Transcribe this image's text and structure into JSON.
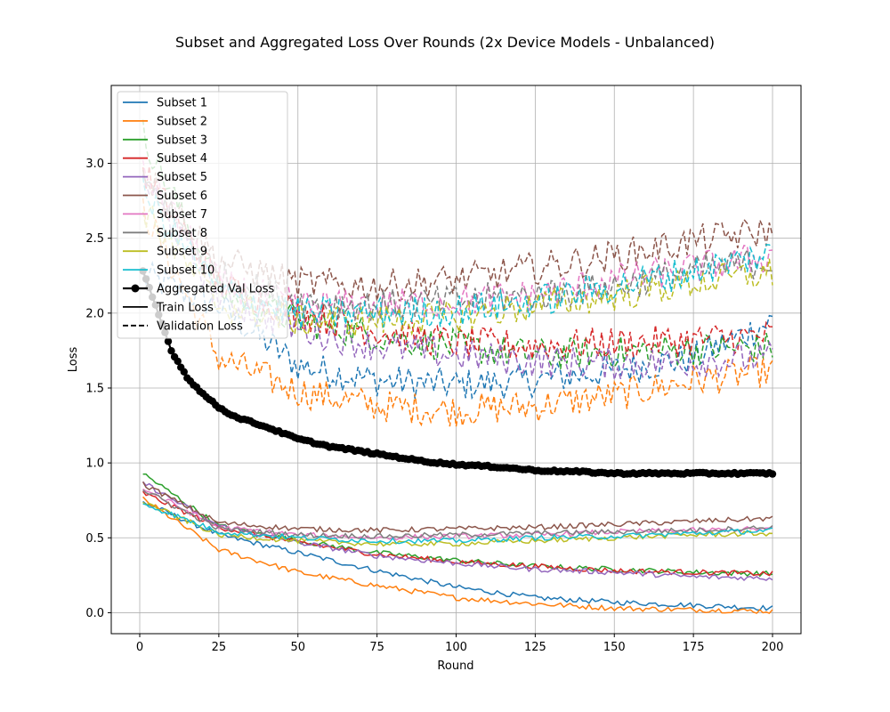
{
  "chart_data": {
    "type": "line",
    "title": "Subset and Aggregated Loss Over Rounds (2x Device Models - Unbalanced)",
    "xlabel": "Round",
    "ylabel": "Loss",
    "xlim": [
      -9,
      209
    ],
    "ylim": [
      -0.14,
      3.52
    ],
    "xticks": [
      0,
      25,
      50,
      75,
      100,
      125,
      150,
      175,
      200
    ],
    "yticks": [
      0.0,
      0.5,
      1.0,
      1.5,
      2.0,
      2.5,
      3.0
    ],
    "xtick_labels": [
      "0",
      "25",
      "50",
      "75",
      "100",
      "125",
      "150",
      "175",
      "200"
    ],
    "ytick_labels": [
      "0.0",
      "0.5",
      "1.0",
      "1.5",
      "2.0",
      "2.5",
      "3.0"
    ],
    "grid": true,
    "legend_position": "upper-left",
    "x": [
      1,
      25,
      50,
      75,
      100,
      125,
      150,
      175,
      200
    ],
    "series": [
      {
        "name": "Subset 1",
        "color": "#1f77b4",
        "train": [
          0.74,
          0.52,
          0.4,
          0.28,
          0.17,
          0.1,
          0.07,
          0.05,
          0.03
        ],
        "val": [
          2.25,
          2.05,
          1.65,
          1.55,
          1.52,
          1.55,
          1.62,
          1.7,
          1.95
        ]
      },
      {
        "name": "Subset 2",
        "color": "#ff7f0e",
        "train": [
          0.76,
          0.42,
          0.27,
          0.18,
          0.1,
          0.06,
          0.03,
          0.02,
          0.01
        ],
        "val": [
          2.7,
          1.7,
          1.48,
          1.38,
          1.35,
          1.38,
          1.45,
          1.55,
          1.62
        ]
      },
      {
        "name": "Subset 3",
        "color": "#2ca02c",
        "train": [
          0.93,
          0.58,
          0.48,
          0.4,
          0.35,
          0.31,
          0.29,
          0.27,
          0.26
        ],
        "val": [
          3.2,
          2.15,
          1.95,
          1.85,
          1.78,
          1.72,
          1.74,
          1.76,
          1.77
        ]
      },
      {
        "name": "Subset 4",
        "color": "#d62728",
        "train": [
          0.8,
          0.57,
          0.47,
          0.39,
          0.34,
          0.31,
          0.28,
          0.27,
          0.26
        ],
        "val": [
          2.95,
          2.2,
          2.0,
          1.88,
          1.8,
          1.78,
          1.8,
          1.82,
          1.85
        ]
      },
      {
        "name": "Subset 5",
        "color": "#9467bd",
        "train": [
          0.87,
          0.58,
          0.47,
          0.38,
          0.33,
          0.29,
          0.27,
          0.24,
          0.23
        ],
        "val": [
          2.9,
          2.1,
          1.9,
          1.78,
          1.72,
          1.68,
          1.66,
          1.68,
          1.7
        ]
      },
      {
        "name": "Subset 6",
        "color": "#8c564b",
        "train": [
          0.86,
          0.6,
          0.56,
          0.55,
          0.56,
          0.57,
          0.59,
          0.61,
          0.63
        ],
        "val": [
          2.95,
          2.35,
          2.2,
          2.18,
          2.22,
          2.3,
          2.38,
          2.48,
          2.55
        ]
      },
      {
        "name": "Subset 7",
        "color": "#e377c2",
        "train": [
          0.83,
          0.57,
          0.52,
          0.5,
          0.51,
          0.52,
          0.54,
          0.55,
          0.56
        ],
        "val": [
          2.95,
          2.2,
          2.05,
          2.05,
          2.08,
          2.12,
          2.22,
          2.3,
          2.38
        ]
      },
      {
        "name": "Subset 8",
        "color": "#7f7f7f",
        "train": [
          0.82,
          0.56,
          0.52,
          0.51,
          0.52,
          0.53,
          0.54,
          0.55,
          0.57
        ],
        "val": [
          2.9,
          2.25,
          2.08,
          2.05,
          2.08,
          2.12,
          2.18,
          2.28,
          2.35
        ]
      },
      {
        "name": "Subset 9",
        "color": "#bcbd22",
        "train": [
          0.74,
          0.52,
          0.48,
          0.46,
          0.46,
          0.48,
          0.5,
          0.52,
          0.53
        ],
        "val": [
          2.7,
          2.05,
          1.95,
          1.95,
          1.98,
          2.05,
          2.12,
          2.2,
          2.27
        ]
      },
      {
        "name": "Subset 10",
        "color": "#17becf",
        "train": [
          0.73,
          0.54,
          0.5,
          0.48,
          0.48,
          0.5,
          0.51,
          0.53,
          0.55
        ],
        "val": [
          2.8,
          2.15,
          2.0,
          2.0,
          2.02,
          2.08,
          2.18,
          2.28,
          2.4
        ]
      }
    ],
    "aggregated_val": {
      "name": "Aggregated Val Loss",
      "color": "#000000",
      "x": [
        1,
        5,
        10,
        15,
        20,
        25,
        30,
        40,
        50,
        60,
        75,
        90,
        100,
        115,
        125,
        140,
        150,
        165,
        175,
        190,
        200
      ],
      "y": [
        2.28,
        2.05,
        1.75,
        1.57,
        1.46,
        1.37,
        1.31,
        1.24,
        1.16,
        1.11,
        1.06,
        1.01,
        0.99,
        0.97,
        0.95,
        0.94,
        0.93,
        0.93,
        0.93,
        0.93,
        0.93
      ]
    },
    "legend": [
      {
        "label": "Subset 1",
        "color": "#1f77b4",
        "style": "solid"
      },
      {
        "label": "Subset 2",
        "color": "#ff7f0e",
        "style": "solid"
      },
      {
        "label": "Subset 3",
        "color": "#2ca02c",
        "style": "solid"
      },
      {
        "label": "Subset 4",
        "color": "#d62728",
        "style": "solid"
      },
      {
        "label": "Subset 5",
        "color": "#9467bd",
        "style": "solid"
      },
      {
        "label": "Subset 6",
        "color": "#8c564b",
        "style": "solid"
      },
      {
        "label": "Subset 7",
        "color": "#e377c2",
        "style": "solid"
      },
      {
        "label": "Subset 8",
        "color": "#7f7f7f",
        "style": "solid"
      },
      {
        "label": "Subset 9",
        "color": "#bcbd22",
        "style": "solid"
      },
      {
        "label": "Subset 10",
        "color": "#17becf",
        "style": "solid"
      },
      {
        "label": "Aggregated Val Loss",
        "color": "#000000",
        "style": "marker"
      },
      {
        "label": "Train Loss",
        "color": "#000000",
        "style": "solid"
      },
      {
        "label": "Validation Loss",
        "color": "#000000",
        "style": "dashed"
      }
    ]
  }
}
